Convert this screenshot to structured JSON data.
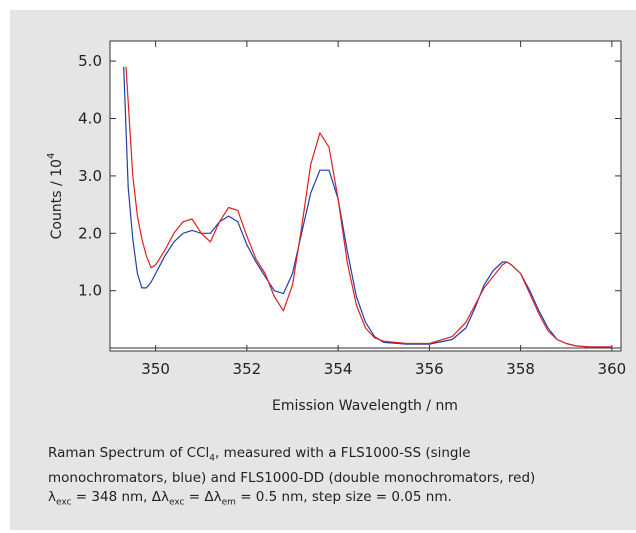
{
  "chart_data": {
    "type": "line",
    "xlabel": "Emission Wavelength / nm",
    "ylabel": "Counts / 10",
    "ylabel_exp": "4",
    "xlim": [
      349.0,
      360.2
    ],
    "ylim": [
      -0.05,
      5.35
    ],
    "x_ticks": [
      350,
      352,
      354,
      356,
      358,
      360
    ],
    "x_tick_labels": [
      "350",
      "352",
      "354",
      "356",
      "358",
      "360"
    ],
    "y_ticks": [
      1.0,
      2.0,
      3.0,
      4.0,
      5.0
    ],
    "y_tick_labels": [
      "1.0",
      "2.0",
      "3.0",
      "4.0",
      "5.0"
    ],
    "grid": false,
    "series": [
      {
        "color": "#1f3fa8",
        "x": [
          349.3,
          349.4,
          349.5,
          349.6,
          349.7,
          349.8,
          349.9,
          350.0,
          350.2,
          350.4,
          350.6,
          350.8,
          351.0,
          351.2,
          351.4,
          351.6,
          351.8,
          352.0,
          352.2,
          352.4,
          352.6,
          352.8,
          353.0,
          353.2,
          353.4,
          353.6,
          353.8,
          354.0,
          354.2,
          354.4,
          354.6,
          354.8,
          355.0,
          355.5,
          356.0,
          356.5,
          356.8,
          357.0,
          357.2,
          357.4,
          357.6,
          357.7,
          357.8,
          358.0,
          358.2,
          358.4,
          358.6,
          358.8,
          359.0,
          359.2,
          359.5,
          360.0
        ],
        "y": [
          4.9,
          2.8,
          1.9,
          1.3,
          1.05,
          1.05,
          1.15,
          1.3,
          1.6,
          1.85,
          2.0,
          2.05,
          2.0,
          2.0,
          2.2,
          2.3,
          2.2,
          1.8,
          1.5,
          1.25,
          1.0,
          0.95,
          1.3,
          2.0,
          2.7,
          3.1,
          3.1,
          2.6,
          1.7,
          0.9,
          0.45,
          0.2,
          0.1,
          0.07,
          0.07,
          0.15,
          0.35,
          0.7,
          1.1,
          1.35,
          1.5,
          1.5,
          1.45,
          1.3,
          1.0,
          0.65,
          0.35,
          0.15,
          0.08,
          0.04,
          0.02,
          0.02
        ]
      },
      {
        "color": "#e02020",
        "x": [
          349.35,
          349.5,
          349.6,
          349.7,
          349.8,
          349.9,
          350.0,
          350.2,
          350.4,
          350.6,
          350.8,
          351.0,
          351.2,
          351.4,
          351.6,
          351.8,
          352.0,
          352.2,
          352.4,
          352.6,
          352.8,
          353.0,
          353.2,
          353.4,
          353.6,
          353.8,
          354.0,
          354.2,
          354.4,
          354.6,
          354.8,
          355.0,
          355.5,
          356.0,
          356.5,
          356.8,
          357.0,
          357.2,
          357.4,
          357.6,
          357.7,
          357.8,
          358.0,
          358.2,
          358.4,
          358.6,
          358.8,
          359.0,
          359.2,
          359.5,
          360.0
        ],
        "y": [
          4.9,
          3.0,
          2.3,
          1.9,
          1.6,
          1.4,
          1.45,
          1.7,
          2.0,
          2.2,
          2.25,
          2.0,
          1.85,
          2.2,
          2.45,
          2.4,
          1.95,
          1.55,
          1.3,
          0.9,
          0.65,
          1.1,
          2.1,
          3.2,
          3.75,
          3.5,
          2.6,
          1.5,
          0.75,
          0.35,
          0.18,
          0.12,
          0.08,
          0.08,
          0.2,
          0.45,
          0.75,
          1.05,
          1.25,
          1.45,
          1.5,
          1.45,
          1.3,
          0.95,
          0.6,
          0.3,
          0.15,
          0.08,
          0.04,
          0.02,
          0.02
        ]
      }
    ]
  },
  "caption": {
    "line1_pre": "Raman Spectrum of CCl",
    "line1_sub": "4",
    "line1_post": ", measured with a FLS1000-SS (single",
    "line2": "monochromators, blue) and FLS1000-DD (double monochromators, red)",
    "l3_lambda": "λ",
    "l3_exc_sub": "exc",
    "l3_eq1": " = 348 nm,  Δλ",
    "l3_exc_sub2": "exc",
    "l3_eq2": " = Δλ",
    "l3_em_sub": "em",
    "l3_post": " = 0.5 nm, step size = 0.05 nm."
  }
}
